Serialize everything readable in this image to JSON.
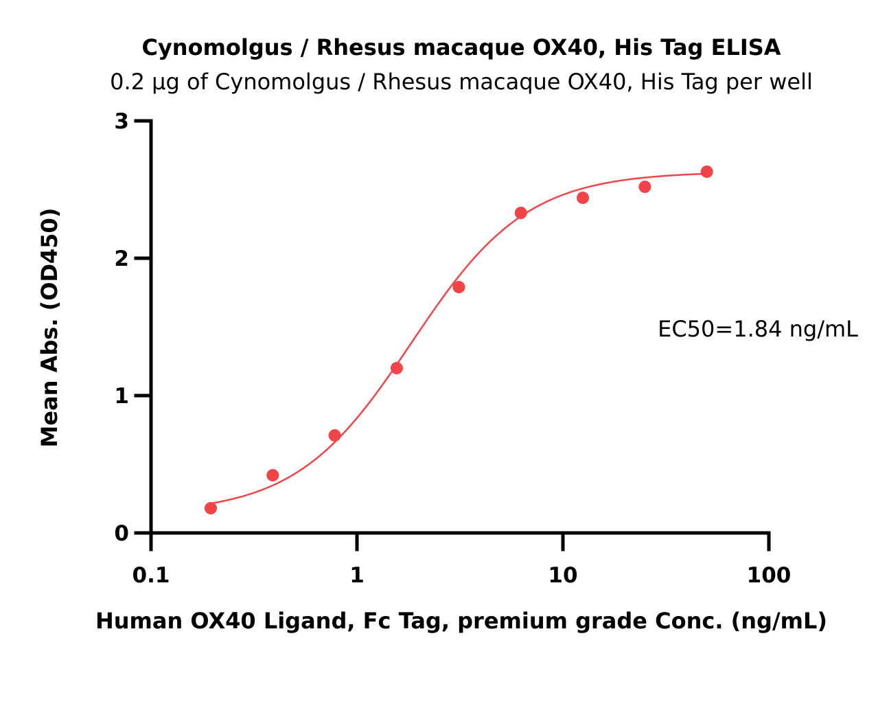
{
  "chart_data": {
    "type": "scatter",
    "title": "Cynomolgus / Rhesus macaque OX40, His Tag ELISA",
    "subtitle": "0.2 μg of Cynomolgus / Rhesus macaque OX40, His Tag per well",
    "xlabel": "Human OX40 Ligand, Fc Tag, premium grade Conc. (ng/mL)",
    "ylabel": "Mean Abs. (OD450)",
    "x_scale": "log",
    "xlim": [
      0.1,
      100
    ],
    "ylim": [
      0,
      3
    ],
    "x_ticks": [
      0.1,
      1,
      10,
      100
    ],
    "x_tick_labels": [
      "0.1",
      "1",
      "10",
      "100"
    ],
    "y_ticks": [
      0,
      1,
      2,
      3
    ],
    "y_tick_labels": [
      "0",
      "1",
      "2",
      "3"
    ],
    "grid": false,
    "legend": "none",
    "color": "#f04448",
    "annotation": "EC50=1.84 ng/mL",
    "series": [
      {
        "x": [
          0.195,
          0.39,
          0.78,
          1.56,
          3.125,
          6.25,
          12.5,
          25,
          50
        ],
        "y": [
          0.18,
          0.42,
          0.71,
          1.2,
          1.79,
          2.33,
          2.44,
          2.52,
          2.63
        ]
      }
    ],
    "fit": {
      "model": "4PL",
      "bottom": 0.14,
      "top": 2.63,
      "ec50": 1.84,
      "hill": 1.55,
      "x_range": [
        0.195,
        50
      ]
    }
  }
}
